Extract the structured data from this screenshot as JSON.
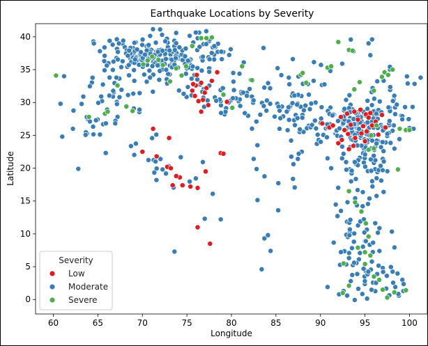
{
  "chart_data": {
    "type": "scatter",
    "title": "Earthquake Locations by Severity",
    "xlabel": "Longitude",
    "ylabel": "Latitude",
    "xlim": [
      58.0,
      102.0
    ],
    "ylim": [
      -2.2,
      42.0
    ],
    "xticks": [
      60,
      65,
      70,
      75,
      80,
      85,
      90,
      95,
      100
    ],
    "yticks": [
      0,
      5,
      10,
      15,
      20,
      25,
      30,
      35,
      40
    ],
    "grid": false,
    "legend": {
      "title": "Severity",
      "placement": "lower-left"
    },
    "series": [
      {
        "name": "Low",
        "color": "#e41a1c",
        "points": [
          [
            71.2,
            26.0
          ],
          [
            73.0,
            24.6
          ],
          [
            70.0,
            22.5
          ],
          [
            71.6,
            21.8
          ],
          [
            72.8,
            20.2
          ],
          [
            73.2,
            20.0
          ],
          [
            74.2,
            18.6
          ],
          [
            73.4,
            17.4
          ],
          [
            74.5,
            17.4
          ],
          [
            73.8,
            18.8
          ],
          [
            75.4,
            17.2
          ],
          [
            76.2,
            17.0
          ],
          [
            77.1,
            19.5
          ],
          [
            76.2,
            11.0
          ],
          [
            77.6,
            8.5
          ],
          [
            75.6,
            31.8
          ],
          [
            76.0,
            32.6
          ],
          [
            76.6,
            33.0
          ],
          [
            77.2,
            32.2
          ],
          [
            76.8,
            30.4
          ],
          [
            77.4,
            29.6
          ],
          [
            76.6,
            28.6
          ],
          [
            75.9,
            31.0
          ],
          [
            76.3,
            30.2
          ],
          [
            77.0,
            31.5
          ],
          [
            75.7,
            32.8
          ],
          [
            77.8,
            33.3
          ],
          [
            78.4,
            34.6
          ],
          [
            76.1,
            34.2
          ],
          [
            79.5,
            30.1
          ],
          [
            78.8,
            22.3
          ],
          [
            79.1,
            22.2
          ],
          [
            90.2,
            26.8
          ],
          [
            91.0,
            26.2
          ],
          [
            91.4,
            26.5
          ],
          [
            92.3,
            27.8
          ],
          [
            93.0,
            28.3
          ],
          [
            93.8,
            28.6
          ],
          [
            94.5,
            28.9
          ],
          [
            95.1,
            28.2
          ],
          [
            95.6,
            28.4
          ],
          [
            94.2,
            27.4
          ],
          [
            93.4,
            26.6
          ],
          [
            92.7,
            25.8
          ],
          [
            93.1,
            25.2
          ],
          [
            93.9,
            24.6
          ],
          [
            94.6,
            25.3
          ],
          [
            95.2,
            25.6
          ],
          [
            95.8,
            26.5
          ],
          [
            96.2,
            27.1
          ],
          [
            95.4,
            27.7
          ],
          [
            94.8,
            26.4
          ],
          [
            92.4,
            24.3
          ],
          [
            93.7,
            23.4
          ],
          [
            93.2,
            22.9
          ],
          [
            92.0,
            23.8
          ],
          [
            96.9,
            28.1
          ],
          [
            97.3,
            26.2
          ],
          [
            96.5,
            25.1
          ],
          [
            95.0,
            24.1
          ]
        ]
      },
      {
        "name": "Moderate",
        "color": "#377eb8",
        "cluster_seed": 7,
        "clusters": [
          {
            "cx": 70.8,
            "cy": 37.0,
            "sx": 2.4,
            "sy": 1.7,
            "n": 150
          },
          {
            "cx": 75.2,
            "cy": 37.4,
            "sx": 2.4,
            "sy": 1.6,
            "n": 70
          },
          {
            "cx": 67.2,
            "cy": 31.5,
            "sx": 2.0,
            "sy": 2.3,
            "n": 35
          },
          {
            "cx": 78.5,
            "cy": 31.5,
            "sx": 2.6,
            "sy": 1.6,
            "n": 45
          },
          {
            "cx": 85.0,
            "cy": 29.4,
            "sx": 3.2,
            "sy": 1.6,
            "n": 45
          },
          {
            "cx": 89.5,
            "cy": 28.0,
            "sx": 2.0,
            "sy": 1.5,
            "n": 25
          },
          {
            "cx": 93.2,
            "cy": 26.6,
            "sx": 1.9,
            "sy": 1.6,
            "n": 90
          },
          {
            "cx": 95.2,
            "cy": 25.0,
            "sx": 1.4,
            "sy": 3.3,
            "n": 90
          },
          {
            "cx": 94.3,
            "cy": 12.5,
            "sx": 1.3,
            "sy": 5.0,
            "n": 70
          },
          {
            "cx": 96.6,
            "cy": 3.4,
            "sx": 1.6,
            "sy": 1.8,
            "n": 30
          },
          {
            "cx": 98.2,
            "cy": 30.6,
            "sx": 1.8,
            "sy": 3.0,
            "n": 28
          },
          {
            "cx": 64.5,
            "cy": 26.5,
            "sx": 1.6,
            "sy": 1.5,
            "n": 14
          },
          {
            "cx": 71.0,
            "cy": 23.0,
            "sx": 1.3,
            "sy": 1.4,
            "n": 10
          },
          {
            "cx": 73.5,
            "cy": 19.0,
            "sx": 1.5,
            "sy": 1.4,
            "n": 10
          },
          {
            "cx": 85.0,
            "cy": 20.0,
            "sx": 2.5,
            "sy": 2.2,
            "n": 15
          },
          {
            "cx": 88.0,
            "cy": 33.5,
            "sx": 3.0,
            "sy": 1.8,
            "n": 15
          }
        ],
        "points": [
          [
            60.8,
            29.8
          ],
          [
            61.0,
            24.8
          ],
          [
            61.2,
            34.0
          ],
          [
            62.2,
            26.0
          ],
          [
            62.8,
            19.9
          ],
          [
            64.5,
            39.3
          ],
          [
            73.6,
            7.3
          ],
          [
            77.0,
            12.3
          ],
          [
            78.8,
            12.2
          ],
          [
            77.9,
            16.1
          ],
          [
            83.4,
            4.6
          ],
          [
            83.7,
            9.3
          ],
          [
            84.1,
            9.8
          ],
          [
            84.4,
            7.4
          ],
          [
            87.9,
            22.5
          ],
          [
            89.6,
            23.7
          ],
          [
            89.8,
            24.3
          ],
          [
            90.8,
            1.9
          ],
          [
            92.1,
            0.8
          ],
          [
            92.6,
            1.3
          ],
          [
            93.4,
            2.8
          ],
          [
            93.0,
            0.6
          ],
          [
            92.3,
            13.5
          ],
          [
            97.0,
            4.8
          ],
          [
            98.8,
            0.6
          ],
          [
            99.2,
            3.0
          ],
          [
            99.5,
            29.3
          ],
          [
            99.8,
            32.9
          ],
          [
            100.0,
            26.1
          ],
          [
            97.8,
            35.0
          ],
          [
            95.8,
            39.6
          ],
          [
            95.4,
            39.0
          ],
          [
            93.7,
            37.8
          ],
          [
            95.6,
            37.2
          ],
          [
            86.9,
            36.6
          ],
          [
            83.6,
            38.3
          ],
          [
            82.3,
            30.9
          ],
          [
            80.2,
            34.5
          ],
          [
            81.1,
            31.6
          ],
          [
            82.8,
            27.1
          ],
          [
            85.4,
            26.0
          ],
          [
            86.7,
            24.2
          ],
          [
            90.8,
            21.5
          ],
          [
            91.2,
            20.0
          ],
          [
            93.5,
            19.2
          ],
          [
            94.0,
            20.6
          ],
          [
            96.0,
            20.8
          ],
          [
            97.0,
            21.4
          ],
          [
            96.8,
            23.2
          ],
          [
            97.5,
            24.9
          ],
          [
            98.1,
            25.7
          ],
          [
            96.4,
            19.4
          ],
          [
            91.7,
            25.3
          ]
        ]
      },
      {
        "name": "Severe",
        "color": "#4daf4a",
        "points": [
          [
            60.3,
            34.1
          ],
          [
            64.0,
            27.8
          ],
          [
            65.8,
            28.3
          ],
          [
            66.1,
            28.6
          ],
          [
            67.2,
            32.6
          ],
          [
            68.2,
            29.4
          ],
          [
            68.9,
            28.7
          ],
          [
            70.1,
            35.8
          ],
          [
            70.6,
            36.4
          ],
          [
            71.1,
            37.0
          ],
          [
            71.8,
            36.5
          ],
          [
            72.3,
            35.7
          ],
          [
            73.1,
            33.2
          ],
          [
            73.8,
            35.2
          ],
          [
            74.4,
            34.1
          ],
          [
            74.9,
            35.5
          ],
          [
            75.6,
            38.6
          ],
          [
            76.6,
            39.8
          ],
          [
            77.2,
            39.8
          ],
          [
            77.8,
            39.9
          ],
          [
            79.1,
            31.2
          ],
          [
            80.1,
            29.2
          ],
          [
            81.2,
            35.5
          ],
          [
            82.3,
            33.4
          ],
          [
            87.8,
            34.2
          ],
          [
            88.0,
            34.5
          ],
          [
            88.4,
            33.0
          ],
          [
            90.8,
            35.3
          ],
          [
            91.2,
            35.5
          ],
          [
            92.0,
            39.2
          ],
          [
            93.2,
            38.0
          ],
          [
            93.6,
            37.9
          ],
          [
            93.8,
            32.0
          ],
          [
            94.4,
            33.1
          ],
          [
            96.0,
            31.8
          ],
          [
            96.9,
            33.9
          ],
          [
            97.2,
            34.6
          ],
          [
            97.6,
            34.2
          ],
          [
            98.1,
            35.0
          ],
          [
            98.9,
            26.0
          ],
          [
            99.6,
            25.8
          ],
          [
            100.0,
            25.8
          ],
          [
            96.0,
            23.0
          ],
          [
            95.4,
            22.8
          ],
          [
            95.7,
            25.0
          ],
          [
            96.3,
            26.5
          ],
          [
            93.2,
            16.5
          ],
          [
            93.9,
            14.8
          ],
          [
            94.6,
            13.4
          ],
          [
            95.1,
            11.6
          ],
          [
            95.4,
            9.6
          ],
          [
            94.2,
            7.9
          ],
          [
            95.0,
            7.2
          ],
          [
            95.6,
            6.7
          ],
          [
            95.0,
            5.4
          ],
          [
            96.0,
            3.5
          ],
          [
            96.6,
            3.0
          ],
          [
            97.0,
            1.5
          ],
          [
            97.5,
            0.3
          ],
          [
            98.3,
            1.1
          ],
          [
            99.6,
            1.4
          ],
          [
            92.6,
            5.5
          ],
          [
            92.5,
            1.0
          ],
          [
            93.2,
            2.1
          ],
          [
            98.7,
            19.8
          ]
        ]
      }
    ]
  }
}
